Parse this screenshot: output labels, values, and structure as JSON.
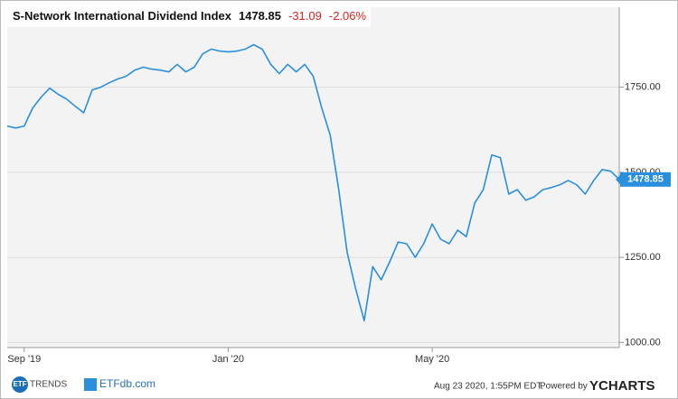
{
  "chart_data": {
    "type": "line",
    "title": "S-Network International Dividend Index",
    "header": {
      "price": "1478.85",
      "change": "-31.09",
      "change_pct": "-2.06%"
    },
    "categories": [
      null,
      null,
      "Sep '19",
      null,
      null,
      null,
      null,
      null,
      null,
      null,
      null,
      null,
      null,
      null,
      null,
      null,
      null,
      null,
      null,
      null,
      null,
      null,
      null,
      null,
      null,
      null,
      "Jan '20",
      null,
      null,
      null,
      null,
      null,
      null,
      null,
      null,
      null,
      null,
      null,
      null,
      null,
      null,
      null,
      null,
      null,
      null,
      null,
      null,
      null,
      null,
      null,
      "May '20",
      null,
      null,
      null,
      null,
      null,
      null,
      null,
      null,
      null,
      null,
      null,
      null,
      null,
      null,
      null,
      null,
      null,
      null,
      null,
      null,
      null,
      null
    ],
    "series": [
      {
        "name": "S-Network International Dividend Index",
        "color": "#2a8fdc",
        "values": [
          1636,
          1630,
          1636,
          1689,
          1721,
          1747,
          1729,
          1715,
          1694,
          1675,
          1742,
          1750,
          1763,
          1774,
          1782,
          1800,
          1809,
          1803,
          1800,
          1795,
          1817,
          1795,
          1809,
          1848,
          1862,
          1856,
          1854,
          1856,
          1862,
          1875,
          1862,
          1817,
          1790,
          1817,
          1795,
          1817,
          1782,
          1689,
          1609,
          1449,
          1263,
          1157,
          1064,
          1223,
          1184,
          1237,
          1295,
          1290,
          1250,
          1290,
          1348,
          1303,
          1290,
          1330,
          1311,
          1410,
          1449,
          1551,
          1543,
          1436,
          1449,
          1418,
          1428,
          1449,
          1455,
          1463,
          1476,
          1463,
          1436,
          1476,
          1508,
          1503,
          1478.85
        ]
      }
    ],
    "last_label": "1478.85",
    "ylim": [
      985,
      1985
    ],
    "yticks": [
      {
        "value": 1000,
        "label": "1000.00"
      },
      {
        "value": 1250,
        "label": "1250.00"
      },
      {
        "value": 1500,
        "label": "1500.00"
      },
      {
        "value": 1750,
        "label": "1750.00"
      }
    ],
    "grid": true
  },
  "footer": {
    "logo1_badge": "ETF",
    "logo1_text": "TRENDS",
    "logo2_text": "ETFdb.com",
    "timestamp": "Aug 23 2020, 1:55PM EDT.",
    "powered": "Powered by",
    "brand": "YCHARTS"
  }
}
